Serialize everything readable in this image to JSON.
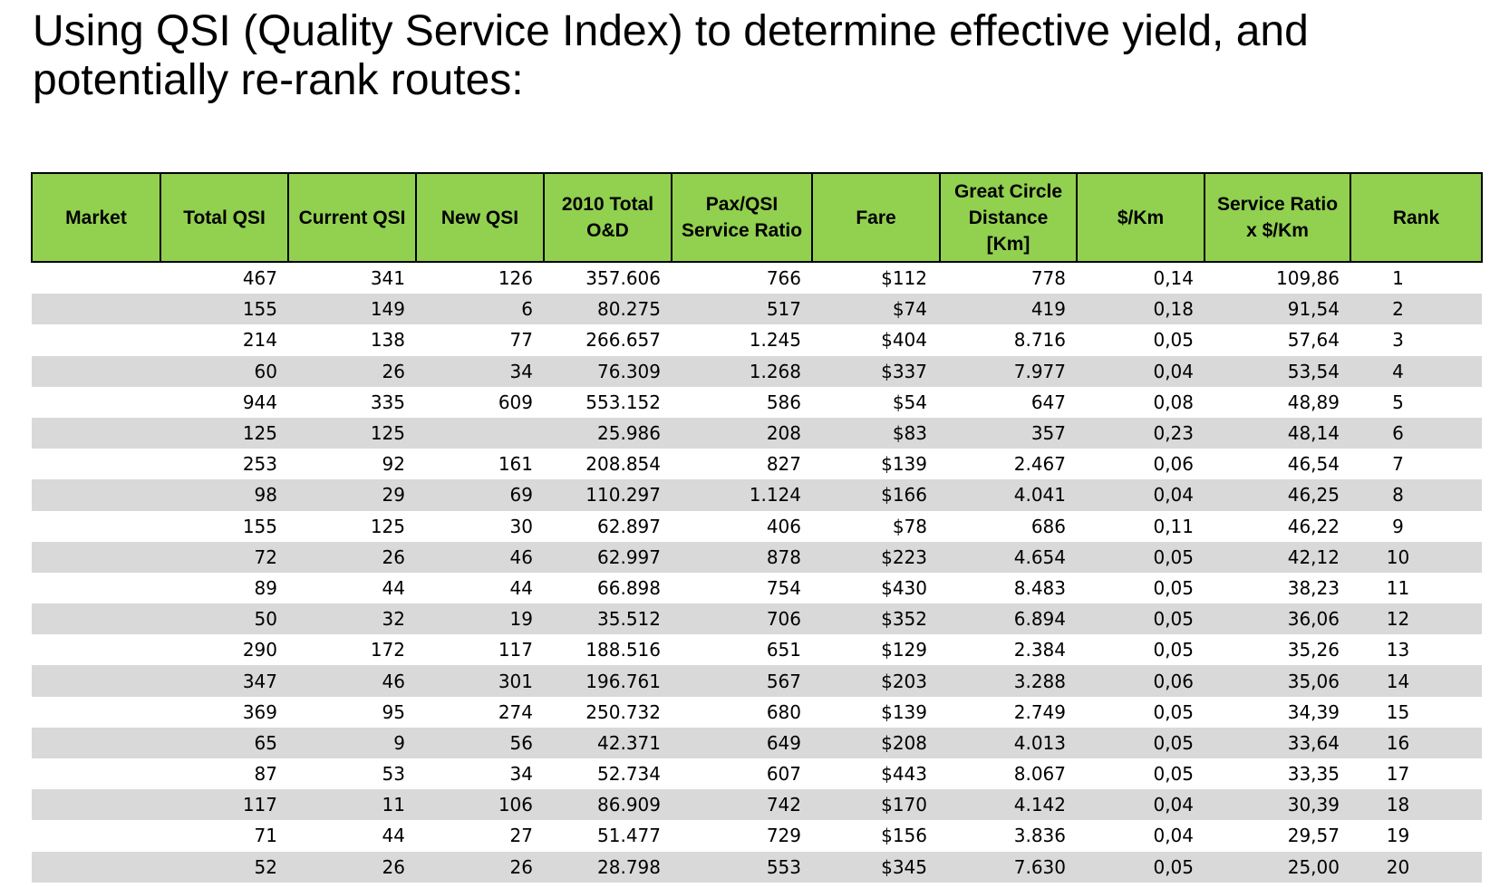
{
  "title": {
    "line1": "Using QSI (Quality Service Index) to determine effective yield, and",
    "line2": "potentially re-rank routes:"
  },
  "colors": {
    "header_bg": "#92d050",
    "stripe_bg": "#d9d9d9"
  },
  "table": {
    "headers": [
      "Market",
      "Total QSI",
      "Current QSI",
      "New QSI",
      "2010 Total\nO&D",
      "Pax/QSI\nService Ratio",
      "Fare",
      "Great Circle\nDistance\n[Km]",
      "$/Km",
      "Service Ratio\nx $/Km",
      "Rank"
    ],
    "rows": [
      [
        "",
        "467",
        "341",
        "126",
        "357.606",
        "766",
        "$112",
        "778",
        "0,14",
        "109,86",
        "1"
      ],
      [
        "",
        "155",
        "149",
        "6",
        "80.275",
        "517",
        "$74",
        "419",
        "0,18",
        "91,54",
        "2"
      ],
      [
        "",
        "214",
        "138",
        "77",
        "266.657",
        "1.245",
        "$404",
        "8.716",
        "0,05",
        "57,64",
        "3"
      ],
      [
        "",
        "60",
        "26",
        "34",
        "76.309",
        "1.268",
        "$337",
        "7.977",
        "0,04",
        "53,54",
        "4"
      ],
      [
        "",
        "944",
        "335",
        "609",
        "553.152",
        "586",
        "$54",
        "647",
        "0,08",
        "48,89",
        "5"
      ],
      [
        "",
        "125",
        "125",
        "",
        "25.986",
        "208",
        "$83",
        "357",
        "0,23",
        "48,14",
        "6"
      ],
      [
        "",
        "253",
        "92",
        "161",
        "208.854",
        "827",
        "$139",
        "2.467",
        "0,06",
        "46,54",
        "7"
      ],
      [
        "",
        "98",
        "29",
        "69",
        "110.297",
        "1.124",
        "$166",
        "4.041",
        "0,04",
        "46,25",
        "8"
      ],
      [
        "",
        "155",
        "125",
        "30",
        "62.897",
        "406",
        "$78",
        "686",
        "0,11",
        "46,22",
        "9"
      ],
      [
        "",
        "72",
        "26",
        "46",
        "62.997",
        "878",
        "$223",
        "4.654",
        "0,05",
        "42,12",
        "10"
      ],
      [
        "",
        "89",
        "44",
        "44",
        "66.898",
        "754",
        "$430",
        "8.483",
        "0,05",
        "38,23",
        "11"
      ],
      [
        "",
        "50",
        "32",
        "19",
        "35.512",
        "706",
        "$352",
        "6.894",
        "0,05",
        "36,06",
        "12"
      ],
      [
        "",
        "290",
        "172",
        "117",
        "188.516",
        "651",
        "$129",
        "2.384",
        "0,05",
        "35,26",
        "13"
      ],
      [
        "",
        "347",
        "46",
        "301",
        "196.761",
        "567",
        "$203",
        "3.288",
        "0,06",
        "35,06",
        "14"
      ],
      [
        "",
        "369",
        "95",
        "274",
        "250.732",
        "680",
        "$139",
        "2.749",
        "0,05",
        "34,39",
        "15"
      ],
      [
        "",
        "65",
        "9",
        "56",
        "42.371",
        "649",
        "$208",
        "4.013",
        "0,05",
        "33,64",
        "16"
      ],
      [
        "",
        "87",
        "53",
        "34",
        "52.734",
        "607",
        "$443",
        "8.067",
        "0,05",
        "33,35",
        "17"
      ],
      [
        "",
        "117",
        "11",
        "106",
        "86.909",
        "742",
        "$170",
        "4.142",
        "0,04",
        "30,39",
        "18"
      ],
      [
        "",
        "71",
        "44",
        "27",
        "51.477",
        "729",
        "$156",
        "3.836",
        "0,04",
        "29,57",
        "19"
      ],
      [
        "",
        "52",
        "26",
        "26",
        "28.798",
        "553",
        "$345",
        "7.630",
        "0,05",
        "25,00",
        "20"
      ]
    ]
  }
}
